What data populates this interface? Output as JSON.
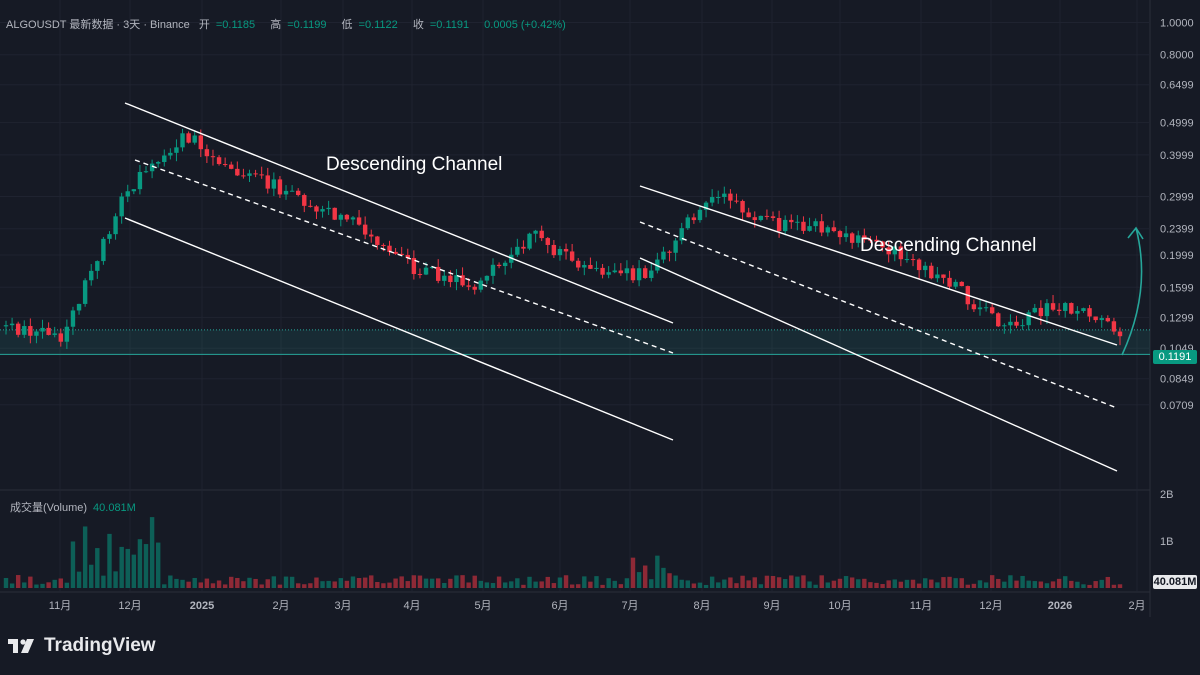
{
  "legend": {
    "symbol": "ALGOUSDT 最新数据 · 3天 · Binance",
    "open_label": "开",
    "open": "=0.1185",
    "high_label": "高",
    "high": "=0.1199",
    "low_label": "低",
    "low": "=0.1122",
    "close_label": "收",
    "close": "=0.1191",
    "change": "0.0005 (+0.42%)"
  },
  "volume_legend": {
    "label": "成交量(Volume)",
    "value": "40.081M"
  },
  "annotations": {
    "channel_1": "Descending Channel",
    "channel_2": "Descending Channel"
  },
  "price_tags": {
    "last_price": "0.1191",
    "last_volume": "40.081M"
  },
  "brand": {
    "name": "TradingView"
  },
  "colors": {
    "up": "#089981",
    "down": "#f23645",
    "background": "#161a25",
    "line": "#ffffff",
    "accent_teal": "#26a69a"
  },
  "chart_data": {
    "type": "candlestick",
    "symbol": "ALGOUSDT",
    "interval": "3天",
    "exchange": "Binance",
    "y_scale": "log",
    "y_ticks": [
      "1.0000",
      "0.8000",
      "0.6499",
      "0.4999",
      "0.3999",
      "0.2999",
      "0.2399",
      "0.1999",
      "0.1599",
      "0.1299",
      "0.1049",
      "0.0849",
      "0.0709"
    ],
    "x_ticks": [
      "11月",
      "12月",
      "2025",
      "2月",
      "3月",
      "4月",
      "5月",
      "6月",
      "7月",
      "8月",
      "9月",
      "10月",
      "11月",
      "12月",
      "2026",
      "2月"
    ],
    "volume_ticks": [
      "2B",
      "1B"
    ],
    "last_price": 0.1191,
    "last_volume": "40.081M",
    "close_path": [
      {
        "x": "11月",
        "y": 0.122
      },
      {
        "x": "11月",
        "y": 0.115
      },
      {
        "x": "12月",
        "y": 0.3
      },
      {
        "x": "12月",
        "y": 0.46
      },
      {
        "x": "2025",
        "y": 0.36
      },
      {
        "x": "2月",
        "y": 0.3
      },
      {
        "x": "3月",
        "y": 0.25
      },
      {
        "x": "3月",
        "y": 0.18
      },
      {
        "x": "4月",
        "y": 0.165
      },
      {
        "x": "5月",
        "y": 0.23
      },
      {
        "x": "6月",
        "y": 0.175
      },
      {
        "x": "7月",
        "y": 0.175
      },
      {
        "x": "7月",
        "y": 0.31
      },
      {
        "x": "8月",
        "y": 0.25
      },
      {
        "x": "9月",
        "y": 0.24
      },
      {
        "x": "10月",
        "y": 0.21
      },
      {
        "x": "11月",
        "y": 0.17
      },
      {
        "x": "12月",
        "y": 0.123
      },
      {
        "x": "2026",
        "y": 0.142
      },
      {
        "x": "2026",
        "y": 0.1191
      }
    ],
    "annotations": [
      "Descending Channel",
      "Descending Channel"
    ]
  }
}
